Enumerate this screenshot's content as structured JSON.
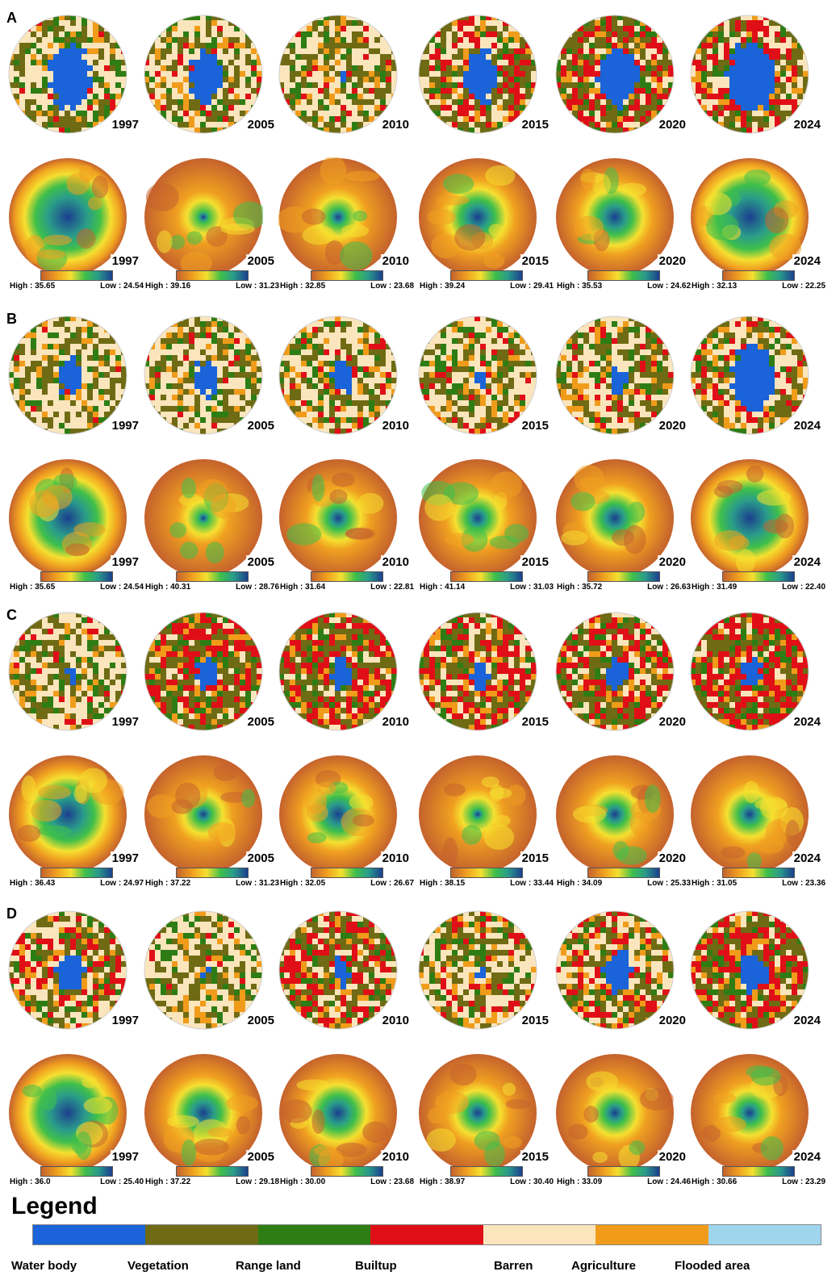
{
  "classes": [
    {
      "name": "Water body",
      "color": "#1a63d8"
    },
    {
      "name": "Vegetation",
      "color": "#6f6b14"
    },
    {
      "name": "Range land",
      "color": "#2e7d14"
    },
    {
      "name": "Builtup",
      "color": "#e00f17"
    },
    {
      "name": "Barren",
      "color": "#fbe5bd"
    },
    {
      "name": "Agriculture",
      "color": "#f09c1a"
    },
    {
      "name": "Flooded area",
      "color": "#9fd6ee"
    }
  ],
  "legend": {
    "title": "Legend"
  },
  "lst_ramp": [
    "#c4622d",
    "#f0a020",
    "#f5e030",
    "#3fbf4a",
    "#2a9c8a",
    "#1b3f8f"
  ],
  "panels": [
    {
      "label": "A",
      "lc_years": [
        "1997",
        "2005",
        "2010",
        "2015",
        "2020",
        "2024"
      ],
      "lst": [
        {
          "year": "1997",
          "high": "High : 35.65",
          "low": "Low : 24.54"
        },
        {
          "year": "2005",
          "high": "High : 39.16",
          "low": "Low : 31.23"
        },
        {
          "year": "2010",
          "high": "High : 32.85",
          "low": "Low : 23.68"
        },
        {
          "year": "2015",
          "high": "High : 39.24",
          "low": "Low : 29.41"
        },
        {
          "year": "2020",
          "high": "High : 35.53",
          "low": "Low : 24.62"
        },
        {
          "year": "2024",
          "high": "High : 32.13",
          "low": "Low : 22.25"
        }
      ]
    },
    {
      "label": "B",
      "lc_years": [
        "1997",
        "2005",
        "2010",
        "2015",
        "2020",
        "2024"
      ],
      "lst": [
        {
          "year": "1997",
          "high": "High : 35.65",
          "low": "Low : 24.54"
        },
        {
          "year": "2005",
          "high": "High : 40.31",
          "low": "Low : 28.76"
        },
        {
          "year": "2010",
          "high": "High : 31.64",
          "low": "Low : 22.81"
        },
        {
          "year": "2015",
          "high": "High : 41.14",
          "low": "Low : 31.03"
        },
        {
          "year": "2020",
          "high": "High : 35.72",
          "low": "Low : 26.63"
        },
        {
          "year": "2024",
          "high": "High : 31.49",
          "low": "Low : 22.40"
        }
      ]
    },
    {
      "label": "C",
      "lc_years": [
        "1997",
        "2005",
        "2010",
        "2015",
        "2020",
        "2024"
      ],
      "lst": [
        {
          "year": "1997",
          "high": "High : 36.43",
          "low": "Low : 24.97"
        },
        {
          "year": "2005",
          "high": "High : 37.22",
          "low": "Low : 31.23"
        },
        {
          "year": "2010",
          "high": "High : 32.05",
          "low": "Low : 26.67"
        },
        {
          "year": "2015",
          "high": "High : 38.15",
          "low": "Low : 33.44"
        },
        {
          "year": "2020",
          "high": "High : 34.09",
          "low": "Low : 25.33"
        },
        {
          "year": "2024",
          "high": "High : 31.05",
          "low": "Low : 23.36"
        }
      ]
    },
    {
      "label": "D",
      "lc_years": [
        "1997",
        "2005",
        "2010",
        "2015",
        "2020",
        "2024"
      ],
      "lst": [
        {
          "year": "1997",
          "high": "High : 36.0",
          "low": "Low : 25.40"
        },
        {
          "year": "2005",
          "high": "High : 37.22",
          "low": "Low : 29.18"
        },
        {
          "year": "2010",
          "high": "High : 30.00",
          "low": "Low : 23.68"
        },
        {
          "year": "2015",
          "high": "High : 38.97",
          "low": "Low : 30.40"
        },
        {
          "year": "2020",
          "high": "High : 33.09",
          "low": "Low : 24.46"
        },
        {
          "year": "2024",
          "high": "High : 30.66",
          "low": "Low : 23.29"
        }
      ]
    }
  ]
}
